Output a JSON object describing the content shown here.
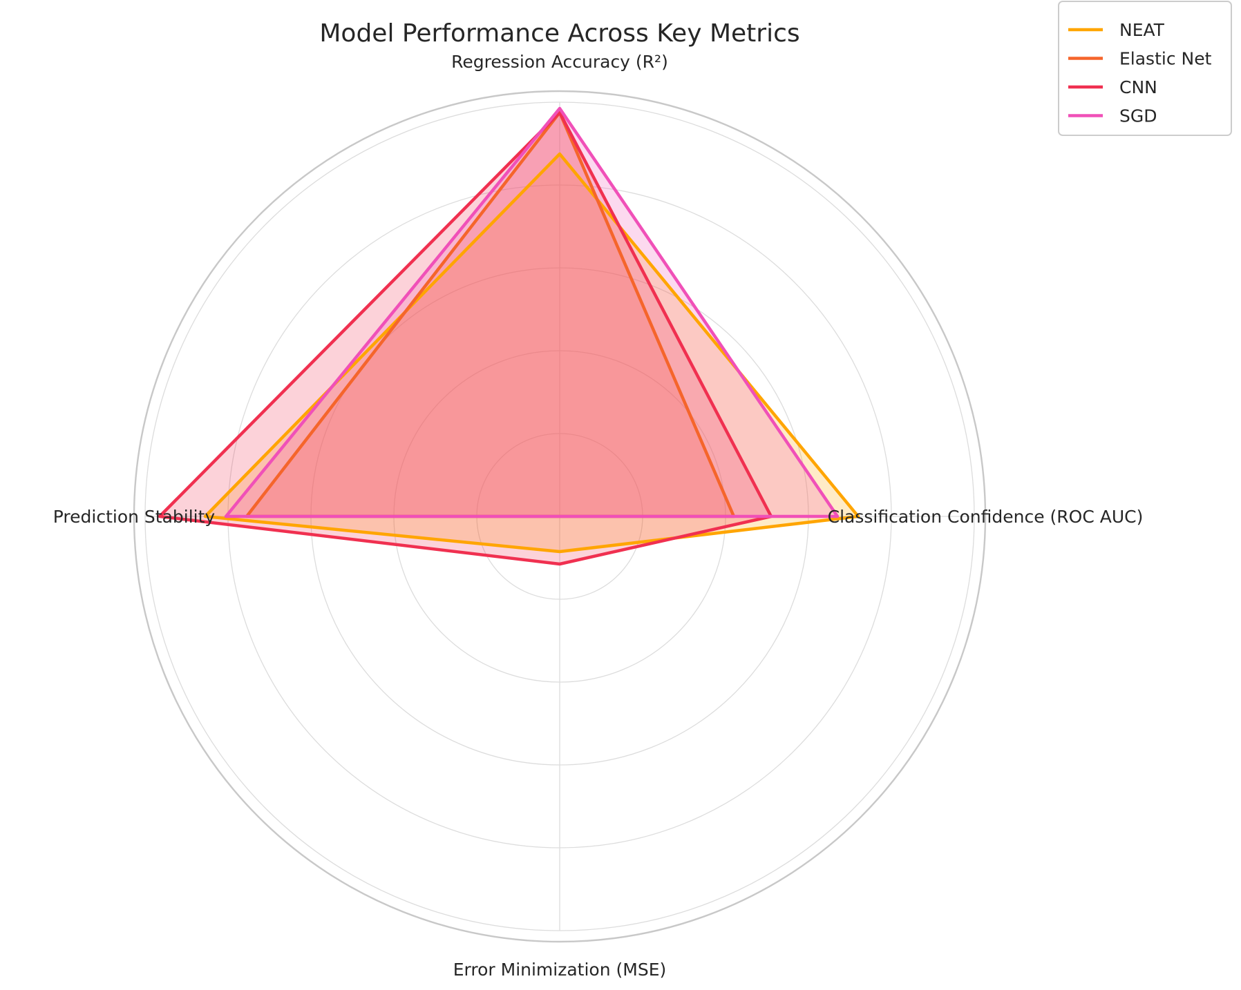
{
  "chart_data": {
    "type": "radar",
    "title": "Model Performance Across Key Metrics",
    "axes": [
      "Regression Accuracy (R²)",
      "Classification Confidence (ROC AUC)",
      "Error Minimization (MSE)",
      "Prediction Stability"
    ],
    "rlim": [
      0,
      1
    ],
    "grid": true,
    "legend_position": "top-right",
    "series": [
      {
        "name": "NEAT",
        "color": "#ffa500",
        "values": [
          0.875,
          0.72,
          0.085,
          0.855
        ]
      },
      {
        "name": "Elastic Net",
        "color": "#f5652b",
        "values": [
          0.975,
          0.42,
          0.0,
          0.755
        ]
      },
      {
        "name": "CNN",
        "color": "#f03050",
        "values": [
          0.975,
          0.51,
          0.115,
          0.965
        ]
      },
      {
        "name": "SGD",
        "color": "#f050b8",
        "values": [
          0.985,
          0.67,
          0.0,
          0.805
        ]
      }
    ]
  }
}
